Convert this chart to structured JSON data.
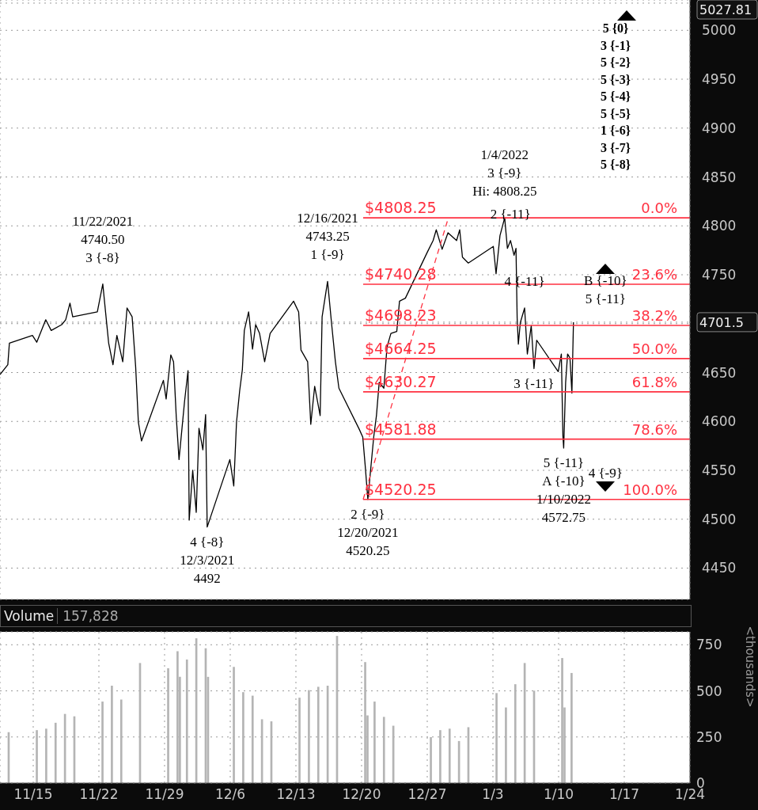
{
  "chart_data": [
    {
      "type": "line",
      "marker": "none",
      "grid": true,
      "tick_labels": "y",
      "xlim": [
        "2021-11-11T11:00",
        "2022-01-24"
      ],
      "xticks": [
        "2021-11-15",
        "2021-11-22",
        "2021-11-29",
        "2021-12-06",
        "2021-12-13",
        "2021-12-20",
        "2021-12-27",
        "2022-01-03",
        "2022-01-10",
        "2022-01-17",
        "2022-01-24"
      ],
      "ylim": [
        4418,
        5031
      ],
      "yticks": [
        4450,
        4500,
        4550,
        4600,
        4650,
        {
          "value": 4700,
          "label": null
        },
        {
          "value": 4701.5,
          "label": "4701.5"
        },
        4750,
        4800,
        4850,
        4900,
        4950,
        5000,
        {
          "value": 5027.81,
          "label": "5027.81"
        }
      ],
      "x": [
        "2021-11-11T11:00",
        "2021-11-12T07:00",
        "2021-11-12T11:00",
        "2021-11-14T22:00",
        "2021-11-15T09:00",
        "2021-11-16T08:00",
        "2021-11-16T22:00",
        "2021-11-18T01:00",
        "2021-11-18T11:00",
        "2021-11-18T22:00",
        "2021-11-19T05:00",
        "2021-11-21T20:00",
        "2021-11-22T10:00",
        "2021-11-22T17:00",
        "2021-11-23T01:00",
        "2021-11-23T12:00",
        "2021-11-23T22:00",
        "2021-11-24T13:00",
        "2021-11-25T00:00",
        "2021-11-25T13:00",
        "2021-11-25T22:00",
        "2021-11-26T05:00",
        "2021-11-26T13:00",
        "2021-11-28T21:00",
        "2021-11-29T04:00",
        "2021-11-29T16:00",
        "2021-11-29T23:00",
        "2021-11-30T06:00",
        "2021-11-30T13:00",
        "2021-12-01T03:00",
        "2021-12-01T12:00",
        "2021-12-01T15:00",
        "2021-12-02T00:00",
        "2021-12-02T09:00",
        "2021-12-02T16:00",
        "2021-12-03T02:00",
        "2021-12-03T09:00",
        "2021-12-03T13:00",
        "2021-12-05T23:00",
        "2021-12-06T09:00",
        "2021-12-06T16:00",
        "2021-12-07T00:00",
        "2021-12-07T07:00",
        "2021-12-07T12:00",
        "2021-12-07T23:00",
        "2021-12-08T09:00",
        "2021-12-08T17:00",
        "2021-12-09T03:00",
        "2021-12-09T16:00",
        "2021-12-10T06:00",
        "2021-12-12T18:00",
        "2021-12-13T07:00",
        "2021-12-13T13:00",
        "2021-12-14T06:00",
        "2021-12-14T14:00",
        "2021-12-15T00:00",
        "2021-12-15T14:00",
        "2021-12-15T19:00",
        "2021-12-16T09:00",
        "2021-12-16T19:00",
        "2021-12-17T05:00",
        "2021-12-17T14:00",
        "2021-12-19T18:00",
        "2021-12-20T03:00",
        "2021-12-20T09:00",
        "2021-12-20T16:00",
        "2021-12-20T23:00",
        "2021-12-21T07:00",
        "2021-12-21T14:00",
        "2021-12-21T21:00",
        "2021-12-22T09:00",
        "2021-12-22T17:00",
        "2021-12-23T03:00",
        "2021-12-23T18:00",
        "2021-12-24T01:00",
        "2021-12-24T16:00",
        "2021-12-27T00:00",
        "2021-12-27T15:00",
        "2021-12-27T23:00",
        "2021-12-28T14:00",
        "2021-12-29T05:00",
        "2021-12-30T03:00",
        "2021-12-30T11:00",
        "2021-12-30T18:00",
        "2021-12-31T09:00",
        "2022-01-03T01:00",
        "2022-01-03T08:00",
        "2022-01-03T18:00",
        "2022-01-04T06:00",
        "2022-01-04T13:00",
        "2022-01-04T21:00",
        "2022-01-05T06:00",
        "2022-01-05T11:00",
        "2022-01-05T14:00",
        "2022-01-05T17:00",
        "2022-01-05T22:00",
        "2022-01-06T09:00",
        "2022-01-06T16:00",
        "2022-01-07T02:00",
        "2022-01-07T09:00",
        "2022-01-07T16:00",
        "2022-01-09T23:00",
        "2022-01-10T07:00",
        "2022-01-10T11:00",
        "2022-01-10T13:00",
        "2022-01-10T18:00",
        "2022-01-10T23:00",
        "2022-01-11T05:00",
        "2022-01-11T10:00",
        "2022-01-11T14:00"
      ],
      "series": [
        {
          "color": "#000000",
          "values": [
            4648,
            4658,
            4680,
            4688,
            4681,
            4704,
            4693,
            4699,
            4704,
            4721,
            4707,
            4712,
            4740.5,
            4712,
            4680,
            4658,
            4688,
            4661,
            4716,
            4707,
            4656,
            4599,
            4580,
            4642,
            4623,
            4668,
            4661,
            4604,
            4561,
            4620,
            4652,
            4499,
            4550,
            4507,
            4593,
            4571,
            4607,
            4492,
            4561,
            4534,
            4599,
            4631,
            4653,
            4693,
            4712,
            4674,
            4699,
            4690,
            4661,
            4690,
            4723,
            4712,
            4673,
            4661,
            4597,
            4636,
            4606,
            4707,
            4743.25,
            4701,
            4661,
            4634,
            4592,
            4584,
            4556,
            4520.25,
            4550,
            4584,
            4606,
            4640,
            4634,
            4676,
            4690,
            4692,
            4723,
            4726,
            4773,
            4785,
            4796,
            4776,
            4793,
            4785,
            4796,
            4768,
            4762,
            4779,
            4751,
            4790,
            4808.25,
            4777,
            4785,
            4770,
            4777,
            4705,
            4679,
            4701,
            4716,
            4669,
            4698,
            4654,
            4683,
            4651,
            4669,
            4585,
            4572.75,
            4640,
            4669,
            4665,
            4629,
            4701.5
          ]
        },
        {
          "type": "line",
          "line_style": "dashed",
          "color": "#ff3040",
          "x": [
            "2021-12-20T04:00",
            "2021-12-29T06:00"
          ],
          "values": [
            4520.25,
            4808.25
          ]
        },
        {
          "type": "line",
          "name": "$4808.25",
          "color": "#ff3040",
          "x": [
            "2021-12-20T04:00",
            "2022-01-24"
          ],
          "values": [
            4808.25,
            4808.25
          ]
        },
        {
          "type": "line",
          "name": "$4740.28",
          "color": "#ff3040",
          "x": [
            "2021-12-20T04:00",
            "2022-01-24"
          ],
          "values": [
            4740.28,
            4740.28
          ]
        },
        {
          "type": "line",
          "name": "$4698.23",
          "color": "#ff3040",
          "x": [
            "2021-12-20T04:00",
            "2022-01-24"
          ],
          "values": [
            4698.23,
            4698.23
          ]
        },
        {
          "type": "line",
          "name": "$4664.25",
          "color": "#ff3040",
          "x": [
            "2021-12-20T04:00",
            "2022-01-24"
          ],
          "values": [
            4664.25,
            4664.25
          ]
        },
        {
          "type": "line",
          "name": "$4630.27",
          "color": "#ff3040",
          "x": [
            "2021-12-20T04:00",
            "2022-01-24"
          ],
          "values": [
            4630.27,
            4630.27
          ]
        },
        {
          "type": "line",
          "name": "$4581.88",
          "color": "#ff3040",
          "x": [
            "2021-12-20T04:00",
            "2022-01-24"
          ],
          "values": [
            4581.88,
            4581.88
          ]
        },
        {
          "type": "line",
          "name": "$4520.25",
          "color": "#ff3040",
          "x": [
            "2021-12-20T04:00",
            "2022-01-24"
          ],
          "values": [
            4520.25,
            4520.25
          ]
        }
      ],
      "annotations": [
        {
          "text": "11/22/2021\n4740.50\n3 {-8}",
          "x": "2021-11-22T10:00",
          "y": 4740.5
        },
        {
          "text": "4 {-8}\n12/3/2021\n4492",
          "x": "2021-12-03T13:00",
          "y": 4492
        },
        {
          "text": "12/16/2021\n4743.25\n1 {-9}",
          "x": "2021-12-16T09:00",
          "y": 4743.25
        },
        {
          "text": "2 {-9}\n12/20/2021\n4520.25",
          "x": "2021-12-20T16:00",
          "y": 4520.25
        },
        {
          "text": "1/4/2022\n3 {-9}",
          "x": "2022-01-04T06:00",
          "y": 4808.25
        },
        {
          "text": "Hi: 4808.25",
          "x": "2022-01-04T06:00",
          "y": 4808.25
        },
        {
          "text": "2 {-11}",
          "x": "2022-01-04T21:00",
          "y": 4785
        },
        {
          "text": "4 {-11}",
          "x": "2022-01-06T09:00",
          "y": 4716
        },
        {
          "text": "3 {-11}",
          "x": "2022-01-07T09:00",
          "y": 4654
        },
        {
          "text": "5 {-11}\nA {-10}\n1/10/2022\n4572.75",
          "x": "2022-01-10T13:00",
          "y": 4572.75
        },
        {
          "text": "4 {-9}",
          "x": "2022-01-15",
          "y": 4520.25
        },
        {
          "text": "B {-10}\n5 {-11}",
          "x": "2022-01-15",
          "y": 4698.23
        },
        {
          "text": "0.0%",
          "x": "2022-01-24",
          "y": 4808.25
        },
        {
          "text": "23.6%",
          "x": "2022-01-24",
          "y": 4740.28
        },
        {
          "text": "38.2%",
          "x": "2022-01-24",
          "y": 4698.23
        },
        {
          "text": "50.0%",
          "x": "2022-01-24",
          "y": 4664.25
        },
        {
          "text": "61.8%",
          "x": "2022-01-24",
          "y": 4630.27
        },
        {
          "text": "78.6%",
          "x": "2022-01-24",
          "y": 4581.88
        },
        {
          "text": "100.0%",
          "x": "2022-01-24",
          "y": 4520.25
        },
        "5 {0}",
        "3 {-1}",
        "5 {-2}",
        "5 {-3}",
        "5 {-4}",
        "5 {-5}",
        "1 {-6}",
        "3 {-7}",
        "5 {-8}"
      ]
    },
    {
      "type": "bar",
      "title": "Volume",
      "annotations": [
        "157,828"
      ],
      "ylabel": "<thousands>",
      "grid": true,
      "color": "#b4b4b4",
      "xlim": [
        "2021-11-11T11:00",
        "2022-01-24"
      ],
      "xticks": [
        {
          "value": "2021-11-15",
          "label": "11/15"
        },
        {
          "value": "2021-11-22",
          "label": "11/22"
        },
        {
          "value": "2021-11-29",
          "label": "11/29"
        },
        {
          "value": "2021-12-06",
          "label": "12/6"
        },
        {
          "value": "2021-12-13",
          "label": "12/13"
        },
        {
          "value": "2021-12-20",
          "label": "12/20"
        },
        {
          "value": "2021-12-27",
          "label": "12/27"
        },
        {
          "value": "2022-01-03",
          "label": "1/3"
        },
        {
          "value": "2022-01-10",
          "label": "1/10"
        },
        {
          "value": "2022-01-17",
          "label": "1/17"
        },
        {
          "value": "2022-01-24",
          "label": "1/24"
        }
      ],
      "ylim": [
        0,
        820
      ],
      "yticks": [
        0,
        250,
        500,
        750
      ],
      "x": [
        "2021-11-12T09:30",
        "2021-11-15T09:30",
        "2021-11-16T09:30",
        "2021-11-17T09:30",
        "2021-11-18T09:30",
        "2021-11-19T09:30",
        "2021-11-22T09:30",
        "2021-11-23T09:30",
        "2021-11-24T09:30",
        "2021-11-26T09:30",
        "2021-11-29T09:30",
        "2021-11-30T09:30",
        "2021-11-30T15:30",
        "2021-12-01T09:30",
        "2021-12-02T09:30",
        "2021-12-03T09:30",
        "2021-12-03T15:30",
        "2021-12-06T09:30",
        "2021-12-07T09:30",
        "2021-12-08T09:30",
        "2021-12-09T09:30",
        "2021-12-10T09:30",
        "2021-12-13T09:30",
        "2021-12-14T09:30",
        "2021-12-15T09:30",
        "2021-12-16T09:30",
        "2021-12-17T09:30",
        "2021-12-20T09:30",
        "2021-12-20T15:30",
        "2021-12-21T09:30",
        "2021-12-22T09:30",
        "2021-12-23T09:30",
        "2021-12-27T09:30",
        "2021-12-28T09:30",
        "2021-12-29T09:30",
        "2021-12-30T09:30",
        "2021-12-31T09:30",
        "2022-01-03T09:30",
        "2022-01-04T09:30",
        "2022-01-05T09:30",
        "2022-01-06T09:30",
        "2022-01-07T09:30",
        "2022-01-10T09:30",
        "2022-01-10T15:30",
        "2022-01-11T09:30"
      ],
      "values": [
        276,
        287,
        295,
        327,
        375,
        362,
        442,
        528,
        453,
        651,
        622,
        715,
        576,
        670,
        785,
        731,
        576,
        630,
        493,
        474,
        346,
        335,
        463,
        504,
        522,
        528,
        798,
        656,
        367,
        442,
        359,
        311,
        249,
        287,
        295,
        228,
        303,
        488,
        410,
        536,
        651,
        501,
        678,
        410,
        597
      ]
    }
  ]
}
